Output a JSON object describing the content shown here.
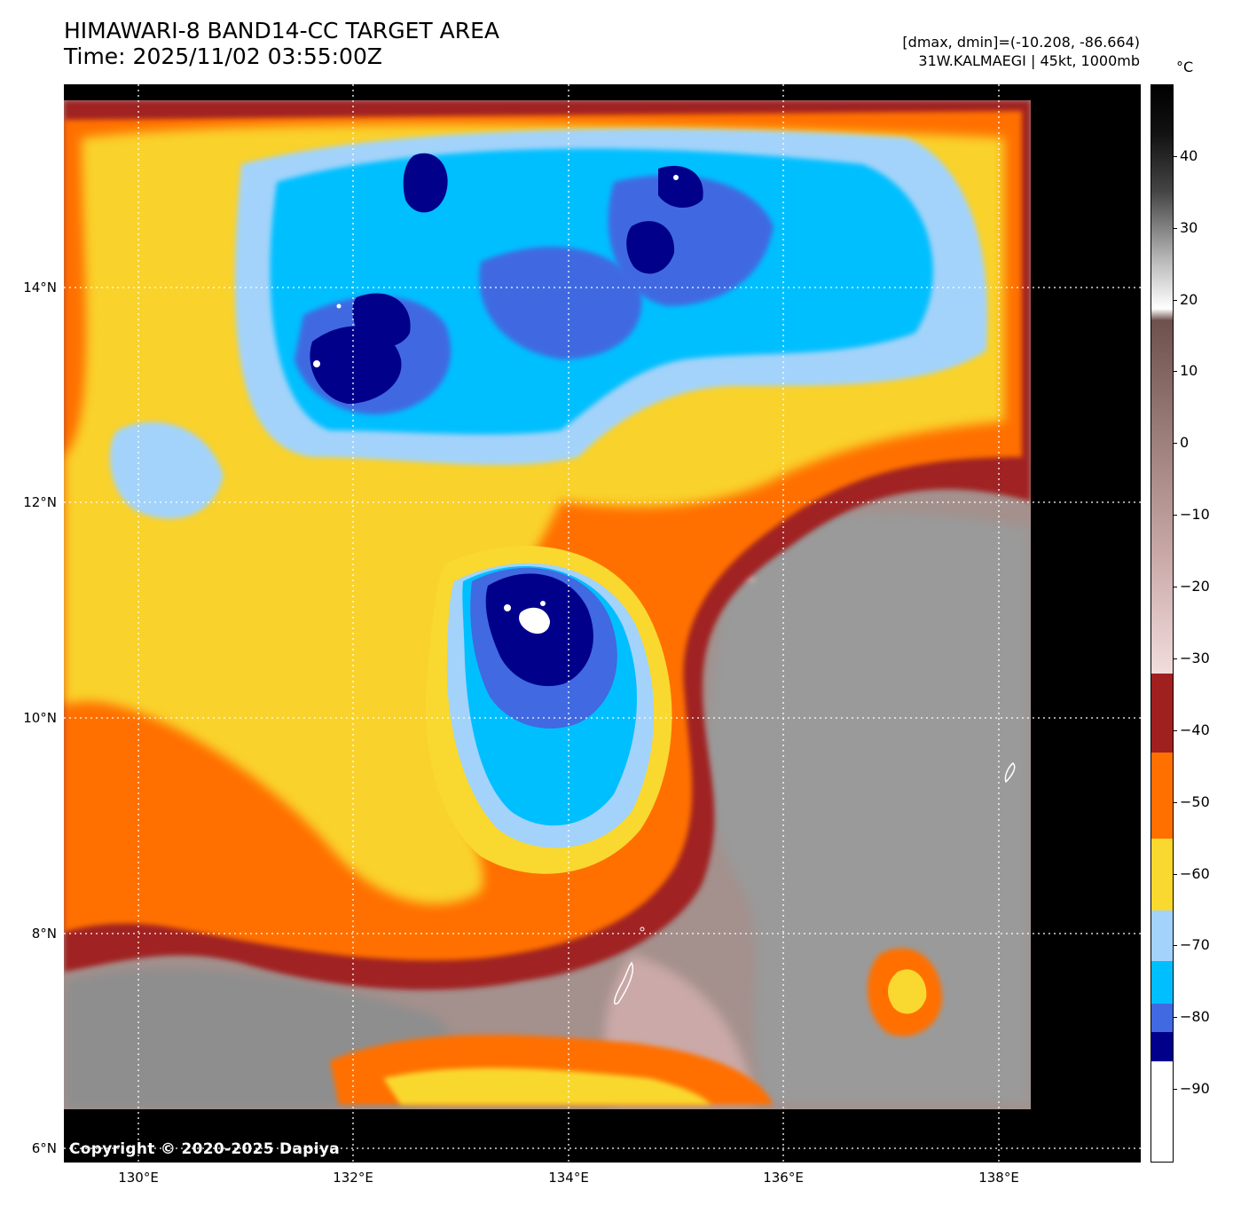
{
  "title": {
    "line1": "HIMAWARI-8 BAND14-CC TARGET AREA",
    "line2": "Time: 2025/11/02 03:55:00Z"
  },
  "info": {
    "line1": "[dmax, dmin]=(-10.208, -86.664)",
    "line2": "31W.KALMAEGI | 45kt, 1000mb"
  },
  "colorbar": {
    "unit": "°C",
    "ticks": [
      "40",
      "30",
      "20",
      "10",
      "0",
      "−10",
      "−20",
      "−30",
      "−40",
      "−50",
      "−60",
      "−70",
      "−80",
      "−90"
    ],
    "segments": [
      {
        "from": -100,
        "to": -86,
        "color": "#ffffff"
      },
      {
        "from": -86,
        "to": -82,
        "color": "#00008b"
      },
      {
        "from": -82,
        "to": -78,
        "color": "#4169e1"
      },
      {
        "from": -78,
        "to": -72,
        "color": "#00bfff"
      },
      {
        "from": -72,
        "to": -65,
        "color": "#a3d3fa"
      },
      {
        "from": -65,
        "to": -55,
        "color": "#f9d82f"
      },
      {
        "from": -55,
        "to": -43,
        "color": "#ff7000"
      },
      {
        "from": -43,
        "to": -32,
        "color": "#a02020"
      }
    ],
    "gradient_range": [
      -32,
      50
    ]
  },
  "map": {
    "lat_labels": [
      "14°N",
      "12°N",
      "10°N",
      "8°N",
      "6°N"
    ],
    "lon_labels": [
      "130°E",
      "132°E",
      "134°E",
      "136°E",
      "138°E"
    ],
    "copyright": "Copyright © 2020-2025 Dapiya"
  }
}
